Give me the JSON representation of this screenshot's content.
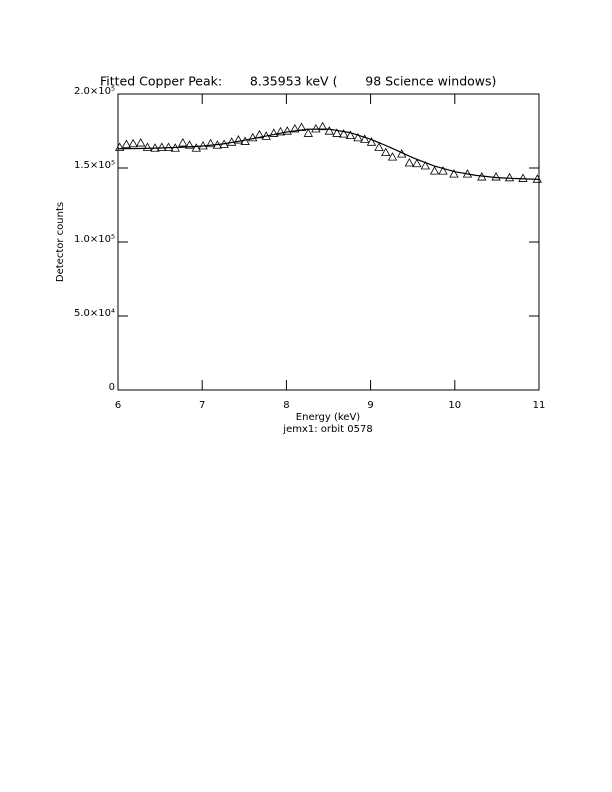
{
  "chart_data": {
    "type": "scatter",
    "title": "Fitted Copper Peak:       8.35953 keV (       98 Science windows)",
    "x_label": "Energy (keV)",
    "y_label": "Detector counts",
    "subtitle": "jemx1: orbit 0578",
    "xlim": [
      6,
      11
    ],
    "xticks": [
      6,
      7,
      8,
      9,
      10,
      11
    ],
    "ylim": [
      0,
      200000
    ],
    "yticks": [
      0,
      {
        "value": 50000,
        "label": "5.0×10⁴"
      },
      {
        "value": 100000,
        "label": "1.0×10⁵"
      },
      {
        "value": 150000,
        "label": "1.5×10⁵"
      },
      {
        "value": 200000,
        "label": "2.0×10⁵"
      }
    ],
    "series": [
      {
        "type": "scatter",
        "marker": "triangle",
        "color": "#000000",
        "x": [
          6.02,
          6.1,
          6.18,
          6.27,
          6.35,
          6.44,
          6.52,
          6.6,
          6.68,
          6.77,
          6.85,
          6.93,
          7.01,
          7.1,
          7.18,
          7.26,
          7.35,
          7.43,
          7.51,
          7.6,
          7.68,
          7.76,
          7.85,
          7.93,
          8.01,
          8.1,
          8.18,
          8.26,
          8.35,
          8.43,
          8.51,
          8.6,
          8.68,
          8.76,
          8.85,
          8.93,
          9.01,
          9.1,
          9.18,
          9.26,
          9.37,
          9.46,
          9.55,
          9.65,
          9.76,
          9.86,
          9.99,
          10.15,
          10.32,
          10.49,
          10.65,
          10.81,
          10.98
        ],
        "values": [
          164000,
          166000,
          166500,
          167000,
          164000,
          163500,
          164000,
          164000,
          163500,
          167000,
          165500,
          163500,
          165000,
          166500,
          165500,
          166000,
          167500,
          169000,
          168000,
          170500,
          172500,
          171500,
          173500,
          174500,
          175000,
          176500,
          177500,
          173500,
          176500,
          178000,
          175000,
          173500,
          173000,
          172000,
          170500,
          169500,
          167500,
          164000,
          160500,
          157500,
          159500,
          153500,
          153000,
          151500,
          148000,
          148000,
          146000,
          146000,
          144000,
          144000,
          143500,
          143000,
          142500
        ]
      },
      {
        "type": "line",
        "color": "#000000",
        "x": [
          6,
          6.25,
          6.5,
          6.75,
          7,
          7.25,
          7.5,
          7.75,
          8,
          8.25,
          8.5,
          8.75,
          9,
          9.25,
          9.5,
          9.75,
          10,
          10.25,
          10.5,
          10.75,
          11
        ],
        "values": [
          163000,
          163200,
          163500,
          164000,
          164800,
          166300,
          168700,
          171500,
          174300,
          176200,
          176300,
          174000,
          169500,
          163500,
          157000,
          151500,
          147500,
          145000,
          143500,
          142800,
          142300
        ]
      }
    ]
  }
}
